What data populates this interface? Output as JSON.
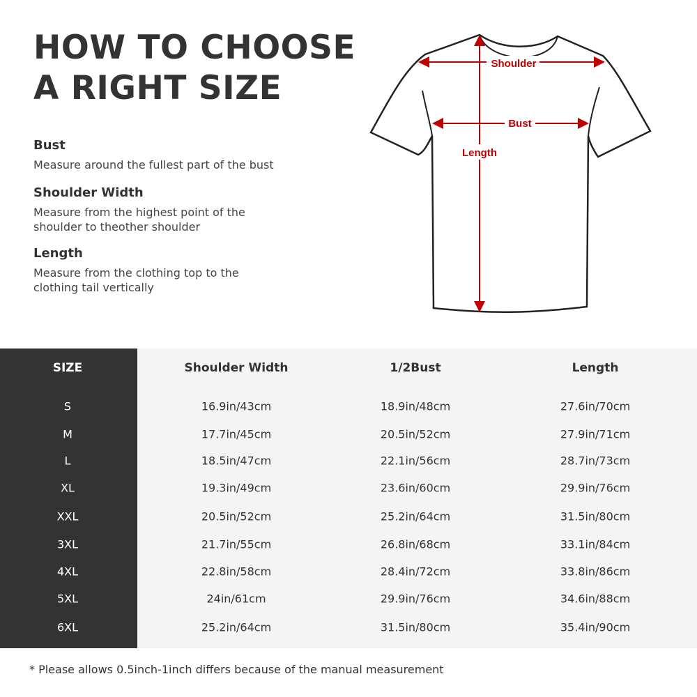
{
  "title": {
    "line1": "HOW TO CHOOSE",
    "line2": "A RIGHT SIZE"
  },
  "guide": [
    {
      "heading": "Bust",
      "text1": "Measure around the fullest part of the bust",
      "text2": ""
    },
    {
      "heading": "Shoulder Width",
      "text1": "Measure from the highest point of the",
      "text2": "shoulder to theother shoulder"
    },
    {
      "heading": "Length",
      "text1": "Measure from the clothing top to the",
      "text2": "clothing tail vertically"
    }
  ],
  "diagram": {
    "shoulder": "Shoulder",
    "bust": "Bust",
    "length": "Length",
    "arrow_color": "#c00000"
  },
  "table": {
    "headers": [
      "SIZE",
      "Shoulder Width",
      "1/2Bust",
      "Length"
    ],
    "rows": [
      [
        "S",
        "16.9in/43cm",
        "18.9in/48cm",
        "27.6in/70cm"
      ],
      [
        "M",
        "17.7in/45cm",
        "20.5in/52cm",
        "27.9in/71cm"
      ],
      [
        "L",
        "18.5in/47cm",
        "22.1in/56cm",
        "28.7in/73cm"
      ],
      [
        "XL",
        "19.3in/49cm",
        "23.6in/60cm",
        "29.9in/76cm"
      ],
      [
        "XXL",
        "20.5in/52cm",
        "25.2in/64cm",
        "31.5in/80cm"
      ],
      [
        "3XL",
        "21.7in/55cm",
        "26.8in/68cm",
        "33.1in/84cm"
      ],
      [
        "4XL",
        "22.8in/58cm",
        "28.4in/72cm",
        "33.8in/86cm"
      ],
      [
        "5XL",
        "24in/61cm",
        "29.9in/76cm",
        "34.6in/88cm"
      ],
      [
        "6XL",
        "25.2in/64cm",
        "31.5in/80cm",
        "35.4in/90cm"
      ]
    ]
  },
  "note": "* Please allows 0.5inch-1inch differs because of the  manual measurement"
}
